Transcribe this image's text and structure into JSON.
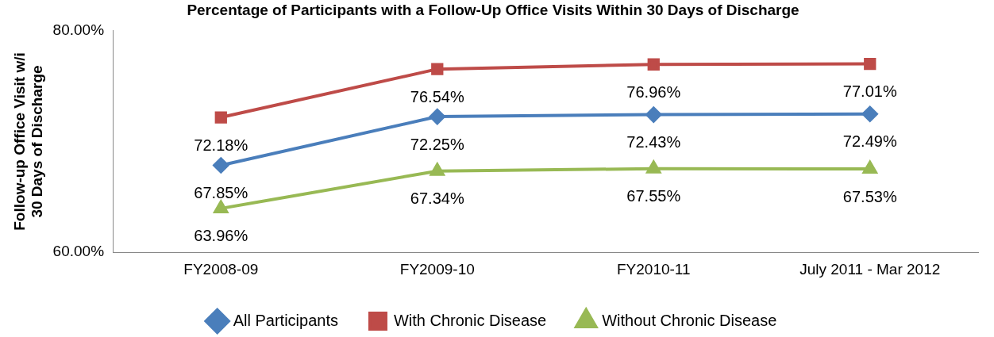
{
  "chart_data": {
    "type": "line",
    "title": "Percentage of Participants with a Follow-Up Office Visits Within 30 Days of Discharge",
    "ylabel": "Follow-up Office Visit w/i\n30 Days of Discharge",
    "categories": [
      "FY2008-09",
      "FY2009-10",
      "FY2010-11",
      "July 2011 - Mar 2012"
    ],
    "series": [
      {
        "name": "All Participants",
        "color": "#4a7ebb",
        "marker": "diamond",
        "values": [
          67.85,
          72.25,
          72.43,
          72.49
        ],
        "value_labels": [
          "67.85%",
          "72.25%",
          "72.43%",
          "72.49%"
        ]
      },
      {
        "name": "With Chronic Disease",
        "color": "#be4b48",
        "marker": "square",
        "values": [
          72.18,
          76.54,
          76.96,
          77.01
        ],
        "value_labels": [
          "72.18%",
          "76.54%",
          "76.96%",
          "77.01%"
        ]
      },
      {
        "name": "Without Chronic Disease",
        "color": "#98b954",
        "marker": "triangle",
        "values": [
          63.96,
          67.34,
          67.55,
          67.53
        ],
        "value_labels": [
          "63.96%",
          "67.34%",
          "67.55%",
          "67.53%"
        ]
      }
    ],
    "ylim": [
      60,
      80
    ],
    "yticks": [
      {
        "value": 60,
        "label": "60.00%"
      },
      {
        "value": 80,
        "label": "80.00%"
      }
    ],
    "grid": false,
    "legend": "bottom"
  }
}
